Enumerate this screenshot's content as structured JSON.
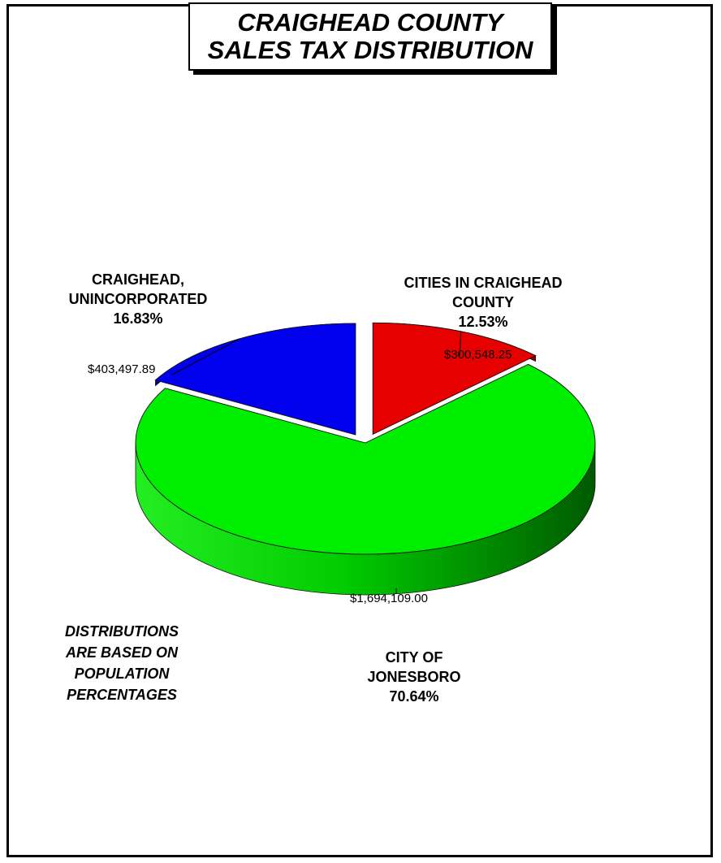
{
  "title": {
    "line1": "CRAIGHEAD COUNTY",
    "line2": "SALES TAX DISTRIBUTION"
  },
  "note": {
    "line1": "DISTRIBUTIONS",
    "line2": "ARE BASED ON",
    "line3": "POPULATION",
    "line4": "PERCENTAGES"
  },
  "labels": {
    "unincorporated": {
      "line1": "CRAIGHEAD,",
      "line2": "UNINCORPORATED",
      "line3": "16.83%"
    },
    "cities": {
      "line1": "CITIES IN CRAIGHEAD",
      "line2": "COUNTY",
      "line3": "12.53%"
    },
    "jonesboro": {
      "line1": "CITY OF",
      "line2": "JONESBORO",
      "line3": "70.64%"
    }
  },
  "chart_data": {
    "type": "pie",
    "style": "3d-exploded",
    "title": "CRAIGHEAD COUNTY SALES TAX DISTRIBUTION",
    "slices": [
      {
        "name": "CITIES IN CRAIGHEAD COUNTY",
        "value": 300548.25,
        "value_label": "$300,548.25",
        "percent": 12.53,
        "color": "#e60000",
        "dark": "#8a0000"
      },
      {
        "name": "CITY OF JONESBORO",
        "value": 1694109.0,
        "value_label": "$1,694,109.00",
        "percent": 70.64,
        "color": "#00ee00",
        "dark": "#006600"
      },
      {
        "name": "CRAIGHEAD, UNINCORPORATED",
        "value": 403497.89,
        "value_label": "$403,497.89",
        "percent": 16.83,
        "color": "#0000ee",
        "dark": "#00008a"
      }
    ]
  }
}
